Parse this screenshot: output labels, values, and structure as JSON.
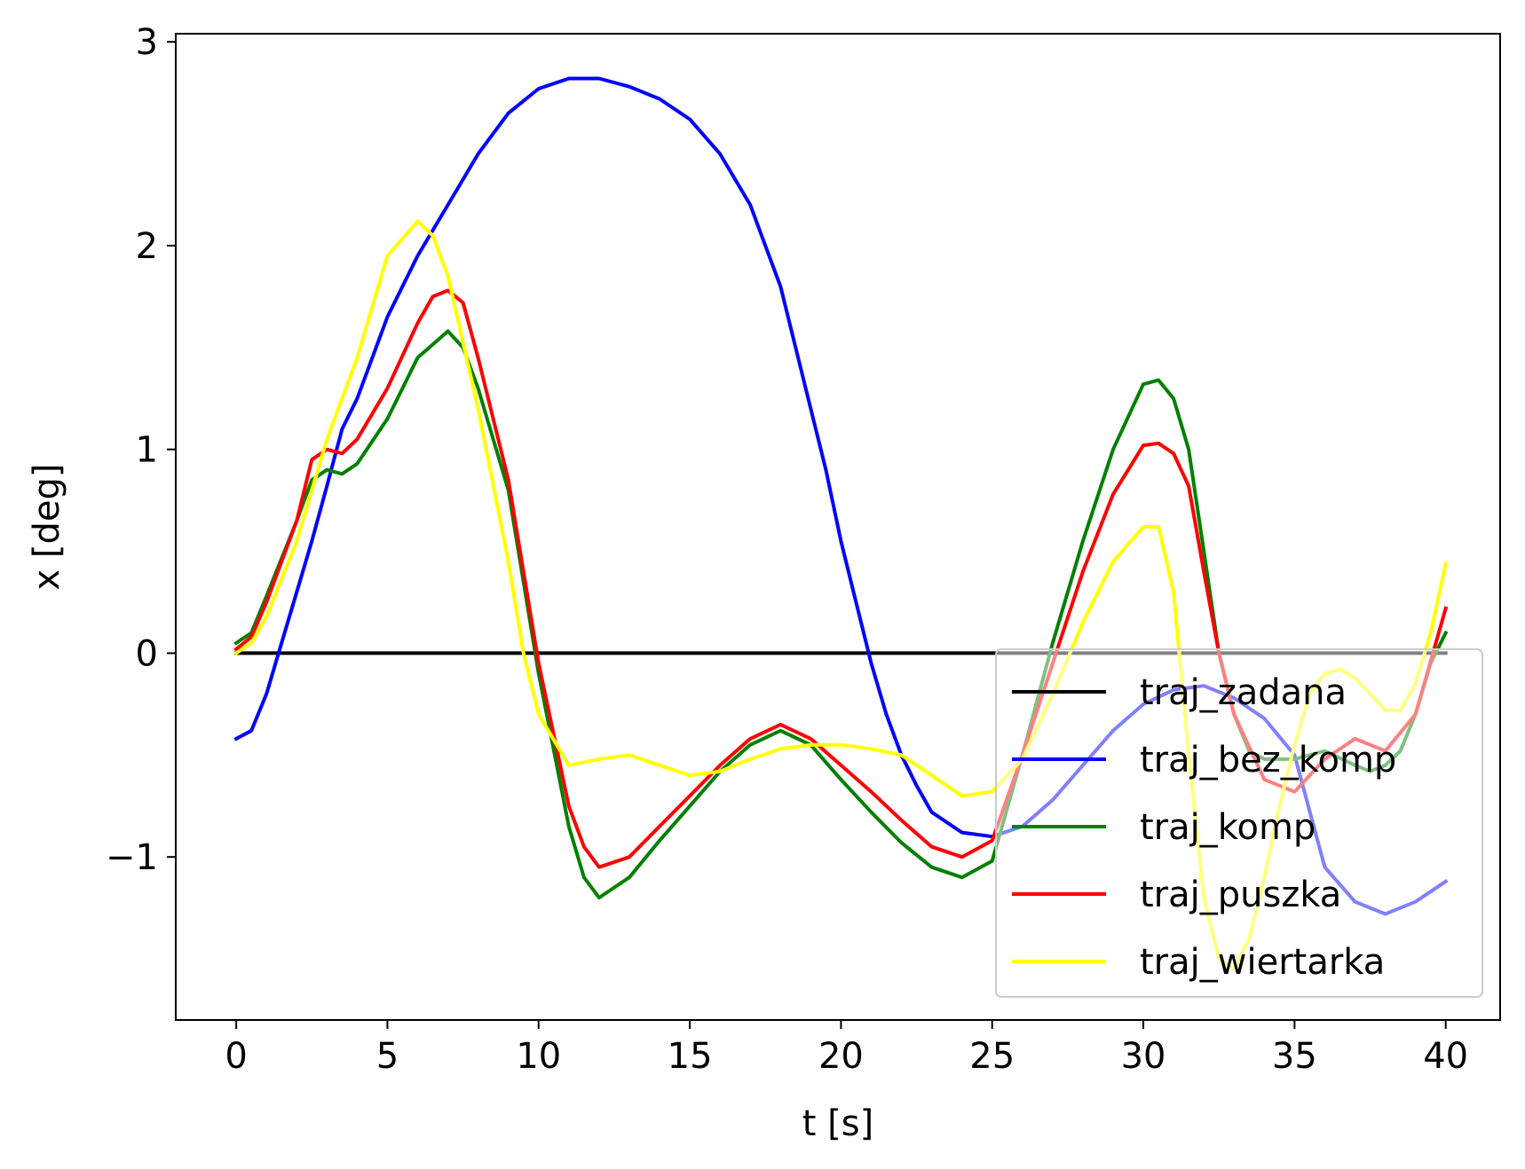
{
  "chart_data": {
    "type": "line",
    "title": "",
    "xlabel": "t [s]",
    "ylabel": "x [deg]",
    "xlim": [
      -2,
      41.8
    ],
    "ylim": [
      -1.8,
      3.04
    ],
    "xticks": [
      0,
      5,
      10,
      15,
      20,
      25,
      30,
      35,
      40
    ],
    "xtick_labels": [
      "0",
      "5",
      "10",
      "15",
      "20",
      "25",
      "30",
      "35",
      "40"
    ],
    "yticks": [
      -1,
      0,
      1,
      2,
      3
    ],
    "ytick_labels": [
      "−1",
      "0",
      "1",
      "2",
      "3"
    ],
    "grid": false,
    "legend_position": "lower-right",
    "series": [
      {
        "name": "traj_zadana",
        "color": "#000000",
        "x": [
          0,
          40
        ],
        "y": [
          0,
          0
        ]
      },
      {
        "name": "traj_bez_komp",
        "color": "#0000ff",
        "x": [
          0,
          0.5,
          1,
          1.5,
          2,
          2.5,
          3,
          3.5,
          4,
          5,
          6,
          7,
          8,
          9,
          10,
          11,
          12,
          13,
          14,
          15,
          16,
          17,
          17.5,
          18,
          18.5,
          19,
          19.5,
          20,
          20.5,
          21,
          21.5,
          22,
          22.5,
          23,
          24,
          25,
          26,
          27,
          28,
          29,
          30,
          31,
          32,
          33,
          34,
          35,
          36,
          37,
          38,
          39,
          40
        ],
        "y": [
          -0.42,
          -0.38,
          -0.2,
          0.05,
          0.3,
          0.55,
          0.82,
          1.1,
          1.25,
          1.65,
          1.95,
          2.2,
          2.45,
          2.65,
          2.77,
          2.82,
          2.82,
          2.78,
          2.72,
          2.62,
          2.45,
          2.2,
          2.0,
          1.8,
          1.5,
          1.2,
          0.9,
          0.55,
          0.25,
          -0.05,
          -0.3,
          -0.5,
          -0.65,
          -0.78,
          -0.88,
          -0.9,
          -0.85,
          -0.72,
          -0.55,
          -0.38,
          -0.25,
          -0.18,
          -0.16,
          -0.22,
          -0.32,
          -0.5,
          -1.05,
          -1.22,
          -1.28,
          -1.22,
          -1.12
        ]
      },
      {
        "name": "traj_komp",
        "color": "#008000",
        "x": [
          0,
          0.5,
          1,
          2,
          2.5,
          3,
          3.5,
          4,
          5,
          6,
          7,
          7.5,
          8,
          9,
          10,
          11,
          11.5,
          12,
          13,
          14,
          15,
          16,
          17,
          18,
          19,
          20,
          21,
          22,
          23,
          24,
          25,
          26,
          27,
          28,
          29,
          30,
          30.5,
          31,
          31.5,
          32,
          32.5,
          33,
          33.5,
          34,
          35,
          36,
          37,
          37.5,
          38,
          38.5,
          39,
          39.5,
          40
        ],
        "y": [
          0.05,
          0.1,
          0.28,
          0.65,
          0.85,
          0.9,
          0.88,
          0.93,
          1.15,
          1.45,
          1.58,
          1.5,
          1.3,
          0.8,
          -0.1,
          -0.85,
          -1.1,
          -1.2,
          -1.1,
          -0.92,
          -0.75,
          -0.58,
          -0.45,
          -0.38,
          -0.45,
          -0.62,
          -0.78,
          -0.93,
          -1.05,
          -1.1,
          -1.02,
          -0.5,
          0.05,
          0.55,
          1.0,
          1.32,
          1.34,
          1.25,
          1.0,
          0.5,
          0.0,
          -0.3,
          -0.48,
          -0.52,
          -0.52,
          -0.48,
          -0.55,
          -0.58,
          -0.55,
          -0.48,
          -0.3,
          -0.05,
          0.1
        ]
      },
      {
        "name": "traj_puszka",
        "color": "#ff0000",
        "x": [
          0,
          0.5,
          1,
          2,
          2.5,
          3,
          3.5,
          4,
          5,
          6,
          6.5,
          7,
          7.5,
          8,
          9,
          10,
          11,
          11.5,
          12,
          13,
          14,
          15,
          16,
          17,
          18,
          19,
          20,
          21,
          22,
          23,
          24,
          25,
          26,
          27,
          28,
          29,
          30,
          30.5,
          31,
          31.5,
          32,
          32.5,
          33,
          34,
          35,
          36,
          37,
          38,
          39,
          40
        ],
        "y": [
          0.02,
          0.08,
          0.25,
          0.65,
          0.95,
          1.0,
          0.98,
          1.05,
          1.3,
          1.62,
          1.75,
          1.78,
          1.72,
          1.45,
          0.85,
          -0.05,
          -0.75,
          -0.95,
          -1.05,
          -1.0,
          -0.85,
          -0.7,
          -0.55,
          -0.42,
          -0.35,
          -0.42,
          -0.55,
          -0.68,
          -0.82,
          -0.95,
          -1.0,
          -0.92,
          -0.5,
          -0.05,
          0.4,
          0.78,
          1.02,
          1.03,
          0.98,
          0.82,
          0.4,
          0.0,
          -0.3,
          -0.62,
          -0.68,
          -0.52,
          -0.42,
          -0.48,
          -0.3,
          0.22
        ]
      },
      {
        "name": "traj_wiertarka",
        "color": "#ffff00",
        "x": [
          0,
          0.5,
          1,
          2,
          3,
          4,
          5,
          6,
          6.5,
          7,
          8,
          9,
          9.5,
          10,
          11,
          12,
          13,
          14,
          15,
          16,
          17,
          18,
          19,
          20,
          21,
          22,
          23,
          24,
          25,
          26,
          27,
          28,
          29,
          30,
          30.5,
          31,
          31.5,
          32,
          32.5,
          33,
          33.5,
          34,
          34.5,
          35,
          35.5,
          36,
          36.5,
          37,
          37.5,
          38,
          38.5,
          39,
          39.5,
          40
        ],
        "y": [
          0.0,
          0.05,
          0.18,
          0.55,
          1.05,
          1.45,
          1.95,
          2.12,
          2.05,
          1.85,
          1.2,
          0.45,
          0.0,
          -0.3,
          -0.55,
          -0.52,
          -0.5,
          -0.55,
          -0.6,
          -0.58,
          -0.52,
          -0.47,
          -0.45,
          -0.45,
          -0.47,
          -0.5,
          -0.6,
          -0.7,
          -0.68,
          -0.52,
          -0.2,
          0.15,
          0.45,
          0.62,
          0.62,
          0.3,
          -0.5,
          -1.2,
          -1.5,
          -1.55,
          -1.4,
          -1.1,
          -0.75,
          -0.45,
          -0.2,
          -0.1,
          -0.08,
          -0.12,
          -0.2,
          -0.28,
          -0.28,
          -0.15,
          0.1,
          0.44
        ]
      }
    ]
  }
}
